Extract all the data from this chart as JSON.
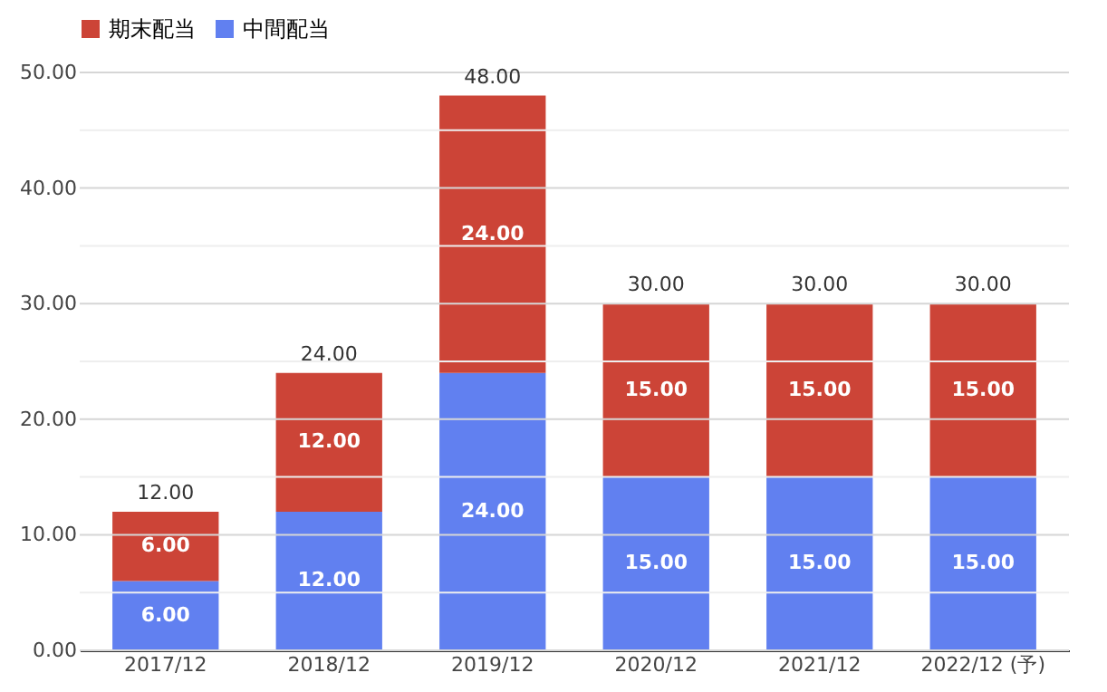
{
  "chart_data": {
    "type": "bar",
    "stacked": true,
    "categories": [
      "2017/12",
      "2018/12",
      "2019/12",
      "2020/12",
      "2021/12",
      "2022/12 (予)"
    ],
    "series": [
      {
        "name": "中間配当",
        "color": "#6180f0",
        "values": [
          6,
          12,
          24,
          15,
          15,
          15
        ],
        "value_labels": [
          "6.00",
          "12.00",
          "24.00",
          "15.00",
          "15.00",
          "15.00"
        ]
      },
      {
        "name": "期末配当",
        "color": "#cc4437",
        "values": [
          6,
          12,
          24,
          15,
          15,
          15
        ],
        "value_labels": [
          "6.00",
          "12.00",
          "24.00",
          "15.00",
          "15.00",
          "15.00"
        ]
      }
    ],
    "totals": [
      "12.00",
      "24.00",
      "48.00",
      "30.00",
      "30.00",
      "30.00"
    ],
    "ylim": [
      0,
      50
    ],
    "yticks": [
      {
        "value": 0,
        "label": "0.00"
      },
      {
        "value": 5,
        "label": null
      },
      {
        "value": 10,
        "label": "10.00"
      },
      {
        "value": 15,
        "label": null
      },
      {
        "value": 20,
        "label": "20.00"
      },
      {
        "value": 25,
        "label": null
      },
      {
        "value": 30,
        "label": "30.00"
      },
      {
        "value": 35,
        "label": null
      },
      {
        "value": 40,
        "label": "40.00"
      },
      {
        "value": 45,
        "label": null
      },
      {
        "value": 50,
        "label": "50.00"
      }
    ],
    "grid": true,
    "legend": "top"
  }
}
